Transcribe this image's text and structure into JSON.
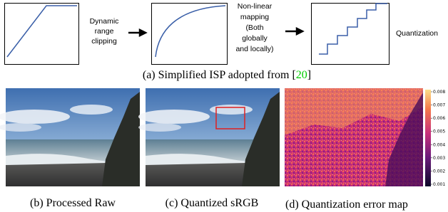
{
  "diagram": {
    "steps": [
      {
        "label": [
          "Dynamic",
          "range",
          "clipping"
        ]
      },
      {
        "label": [
          "Non-linear",
          "mapping",
          "(Both",
          "globally",
          "and locally)"
        ]
      },
      {
        "label": [
          "Quantization"
        ]
      }
    ]
  },
  "caption_a": {
    "text": "(a) Simplified ISP adopted from [",
    "ref": "20",
    "close": "]"
  },
  "images": [
    {
      "caption": "(b) Processed Raw"
    },
    {
      "caption": "(c) Quantized sRGB"
    },
    {
      "caption": "(d) Quantization error map"
    }
  ],
  "colorbar": {
    "ticks": [
      "0.008",
      "0.007",
      "0.006",
      "0.005",
      "0.004",
      "0.003",
      "0.002",
      "0.001"
    ]
  }
}
